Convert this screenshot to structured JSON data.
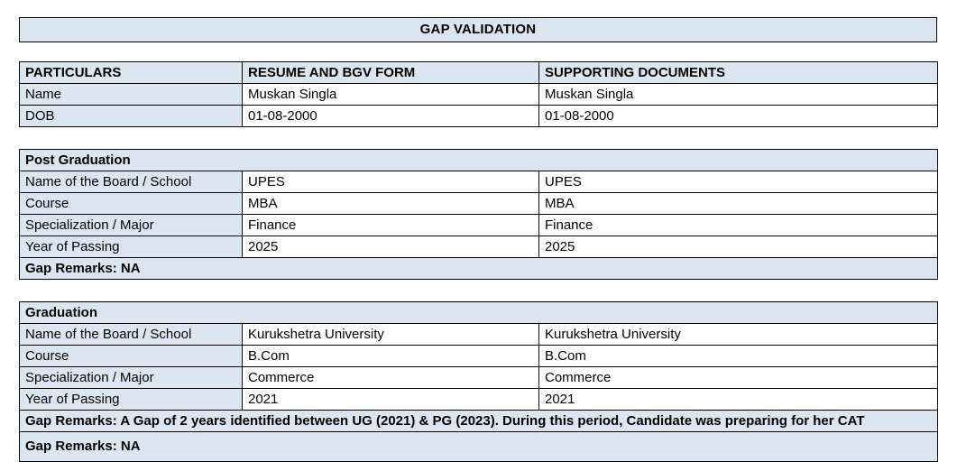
{
  "title": "GAP VALIDATION",
  "colors": {
    "header_fill": "#dce6f1",
    "border": "#000000",
    "text": "#000000",
    "background": "#ffffff"
  },
  "particulars_table": {
    "headers": [
      "PARTICULARS",
      "RESUME AND BGV FORM",
      "SUPPORTING DOCUMENTS"
    ],
    "rows": [
      {
        "label": "Name",
        "resume": "Muskan Singla",
        "supporting": "Muskan Singla"
      },
      {
        "label": "DOB",
        "resume": "01-08-2000",
        "supporting": "01-08-2000"
      }
    ]
  },
  "post_graduation": {
    "section_title": "Post Graduation",
    "rows": [
      {
        "label": "Name of the Board / School",
        "resume": "UPES",
        "supporting": "UPES"
      },
      {
        "label": "Course",
        "resume": "MBA",
        "supporting": "MBA"
      },
      {
        "label": "Specialization / Major",
        "resume": "Finance",
        "supporting": "Finance"
      },
      {
        "label": "Year of Passing",
        "resume": "2025",
        "supporting": "2025"
      }
    ],
    "gap_remarks": "Gap Remarks: NA"
  },
  "graduation": {
    "section_title": "Graduation",
    "rows": [
      {
        "label": "Name of the Board / School",
        "resume": "Kurukshetra University",
        "supporting": "Kurukshetra University"
      },
      {
        "label": "Course",
        "resume": "B.Com",
        "supporting": "B.Com"
      },
      {
        "label": "Specialization / Major",
        "resume": "Commerce",
        "supporting": "Commerce"
      },
      {
        "label": "Year of Passing",
        "resume": "2021",
        "supporting": "2021"
      }
    ],
    "gap_remarks_detail": "Gap Remarks: A Gap of 2 years identified between UG (2021) & PG (2023). During this period, Candidate was preparing for her CAT",
    "gap_remarks_na": "Gap Remarks: NA"
  }
}
